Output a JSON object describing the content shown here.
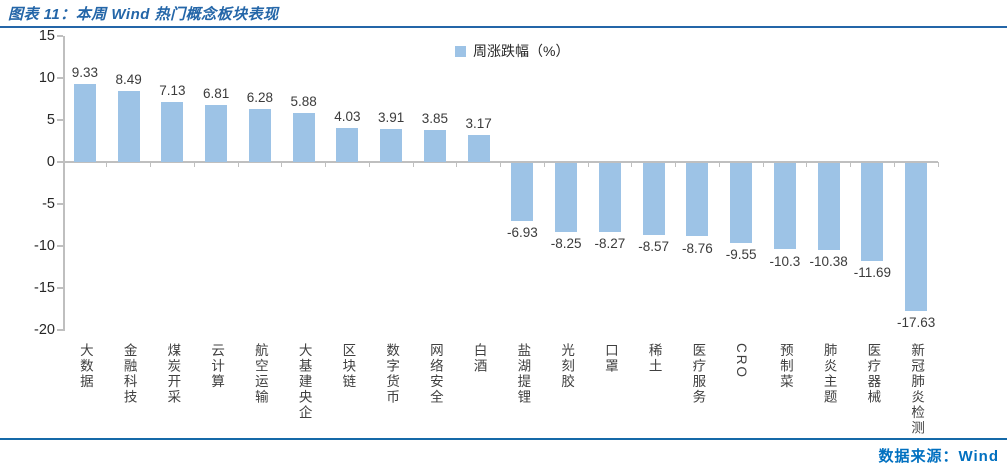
{
  "header": {
    "title": "图表 11：本周 Wind 热门概念板块表现"
  },
  "footer": {
    "source": "数据来源：Wind"
  },
  "colors": {
    "bar": "#9dc3e6",
    "title_blue": "#2466a8",
    "source_blue": "#0070c0",
    "axis_gray": "#bfbfbf",
    "label_dark": "#3b3b3b"
  },
  "chart_data": {
    "type": "bar",
    "title": "本周 Wind 热门概念板块表现",
    "legend": [
      "周涨跌幅（%）"
    ],
    "legend_position": "top-center",
    "grid": false,
    "ylim": [
      -20,
      15
    ],
    "yticks": [
      15,
      10,
      5,
      0,
      -5,
      -10,
      -15,
      -20
    ],
    "xlabel": "",
    "ylabel": "",
    "categories": [
      "大数据",
      "金融科技",
      "煤炭开采",
      "云计算",
      "航空运输",
      "大基建央企",
      "区块链",
      "数字货币",
      "网络安全",
      "白酒",
      "盐湖提锂",
      "光刻胶",
      "口罩",
      "稀土",
      "医疗服务",
      "CRO",
      "预制菜",
      "肺炎主题",
      "医疗器械",
      "新冠肺炎检测"
    ],
    "values": [
      9.33,
      8.49,
      7.13,
      6.81,
      6.28,
      5.88,
      4.03,
      3.91,
      3.85,
      3.17,
      -6.93,
      -8.25,
      -8.27,
      -8.57,
      -8.76,
      -9.55,
      -10.3,
      -10.38,
      -11.69,
      -17.63
    ],
    "value_labels": [
      "9.33",
      "8.49",
      "7.13",
      "6.81",
      "6.28",
      "5.88",
      "4.03",
      "3.91",
      "3.85",
      "3.17",
      "-6.93",
      "-8.25",
      "-8.27",
      "-8.57",
      "-8.76",
      "-9.55",
      "-10.3",
      "-10.38",
      "-11.69",
      "-17.63"
    ]
  }
}
